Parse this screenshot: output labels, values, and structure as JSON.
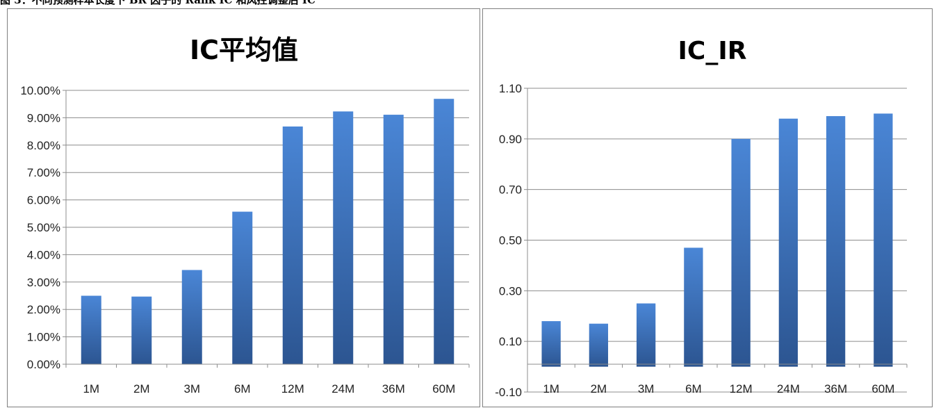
{
  "caption": "图 3：不同预测样本长度下 BR 因子的 Rank IC 和风控调整后 IC",
  "chart_data": [
    {
      "type": "bar",
      "title": "IC平均值",
      "categories": [
        "1M",
        "2M",
        "3M",
        "6M",
        "12M",
        "24M",
        "36M",
        "60M"
      ],
      "values": [
        2.5,
        2.47,
        3.44,
        5.57,
        8.68,
        9.23,
        9.11,
        9.69
      ],
      "value_format": "percent",
      "ylim": [
        0,
        10
      ],
      "yticks": [
        0,
        1,
        2,
        3,
        4,
        5,
        6,
        7,
        8,
        9,
        10
      ],
      "ytick_labels": [
        "0.00%",
        "1.00%",
        "2.00%",
        "3.00%",
        "4.00%",
        "5.00%",
        "6.00%",
        "7.00%",
        "8.00%",
        "9.00%",
        "10.00%"
      ],
      "grid": true,
      "bar_color": "#3b6fc0"
    },
    {
      "type": "bar",
      "title": "IC_IR",
      "categories": [
        "1M",
        "2M",
        "3M",
        "6M",
        "12M",
        "24M",
        "36M",
        "60M"
      ],
      "values": [
        0.18,
        0.17,
        0.25,
        0.47,
        0.9,
        0.98,
        0.99,
        1.0
      ],
      "ylim": [
        -0.1,
        1.1
      ],
      "yticks": [
        -0.1,
        0.1,
        0.3,
        0.5,
        0.7,
        0.9,
        1.1
      ],
      "ytick_labels": [
        "-0.10",
        "0.10",
        "0.30",
        "0.50",
        "0.70",
        "0.90",
        "1.10"
      ],
      "grid": true,
      "bar_color": "#3b6fc0"
    }
  ]
}
